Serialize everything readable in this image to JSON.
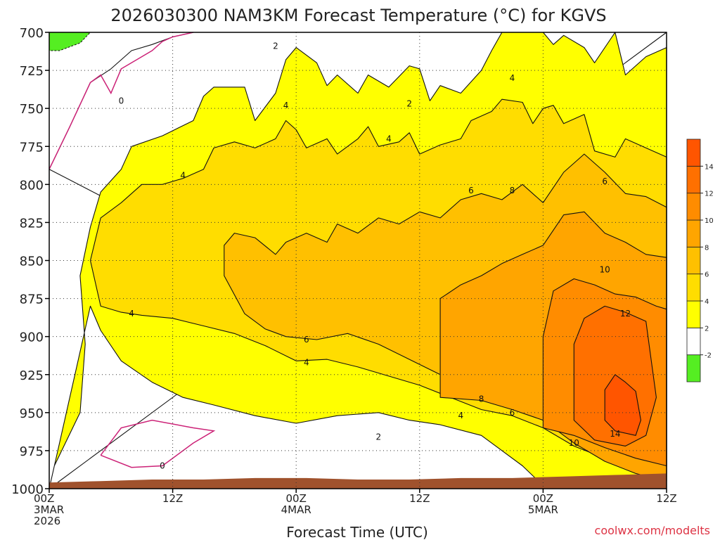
{
  "chart_data": {
    "type": "heatmap",
    "title": "2026030300 NAM3KM Forecast Temperature (°C) for KGVS",
    "xlabel": "Forecast Time (UTC)",
    "ylabel": "",
    "watermark": "coolwx.com/modelts",
    "yticks": [
      700,
      725,
      750,
      775,
      800,
      825,
      850,
      875,
      900,
      925,
      950,
      975,
      1000
    ],
    "ylim": [
      1000,
      700
    ],
    "xticks": [
      {
        "hour": 0,
        "line1": "00Z",
        "line2": "3MAR",
        "line3": "2026"
      },
      {
        "hour": 12,
        "line1": "12Z",
        "line2": "",
        "line3": ""
      },
      {
        "hour": 24,
        "line1": "00Z",
        "line2": "4MAR",
        "line3": ""
      },
      {
        "hour": 36,
        "line1": "12Z",
        "line2": "",
        "line3": ""
      },
      {
        "hour": 48,
        "line1": "00Z",
        "line2": "5MAR",
        "line3": ""
      },
      {
        "hour": 60,
        "line1": "12Z",
        "line2": "",
        "line3": ""
      }
    ],
    "xlim": [
      0,
      60
    ],
    "grid": true,
    "legend": "right",
    "colorbar": {
      "levels": [
        {
          "from": -4,
          "to": -2,
          "color": "#55ee22",
          "label": "-2"
        },
        {
          "from": -2,
          "to": 2,
          "color": "#ffffff",
          "label": "2"
        },
        {
          "from": 2,
          "to": 4,
          "color": "#ffff00",
          "label": "4"
        },
        {
          "from": 4,
          "to": 6,
          "color": "#ffdd00",
          "label": "6"
        },
        {
          "from": 6,
          "to": 8,
          "color": "#ffc000",
          "label": "8"
        },
        {
          "from": 8,
          "to": 10,
          "color": "#ffa500",
          "label": "10"
        },
        {
          "from": 10,
          "to": 12,
          "color": "#ff8c00",
          "label": "12"
        },
        {
          "from": 12,
          "to": 14,
          "color": "#ff7000",
          "label": "14"
        },
        {
          "from": 14,
          "to": 16,
          "color": "#ff5500",
          "label": ""
        }
      ]
    },
    "ground_color": "#a0522d",
    "contour_labels": [
      {
        "text": "0",
        "hour": 7,
        "p": 745
      },
      {
        "text": "2",
        "hour": 22,
        "p": 709
      },
      {
        "text": "4",
        "hour": 23,
        "p": 748
      },
      {
        "text": "2",
        "hour": 35,
        "p": 747
      },
      {
        "text": "4",
        "hour": 33,
        "p": 770
      },
      {
        "text": "4",
        "hour": 45,
        "p": 730
      },
      {
        "text": "4",
        "hour": 13,
        "p": 794
      },
      {
        "text": "6",
        "hour": 41,
        "p": 804
      },
      {
        "text": "8",
        "hour": 45,
        "p": 804
      },
      {
        "text": "6",
        "hour": 54,
        "p": 798
      },
      {
        "text": "10",
        "hour": 54,
        "p": 856
      },
      {
        "text": "12",
        "hour": 56,
        "p": 885
      },
      {
        "text": "4",
        "hour": 8,
        "p": 885
      },
      {
        "text": "6",
        "hour": 25,
        "p": 902
      },
      {
        "text": "4",
        "hour": 25,
        "p": 917
      },
      {
        "text": "8",
        "hour": 42,
        "p": 941
      },
      {
        "text": "6",
        "hour": 45,
        "p": 950
      },
      {
        "text": "4",
        "hour": 40,
        "p": 952
      },
      {
        "text": "2",
        "hour": 32,
        "p": 966
      },
      {
        "text": "0",
        "hour": 11,
        "p": 985
      },
      {
        "text": "10",
        "hour": 51,
        "p": 970
      },
      {
        "text": "14",
        "hour": 55,
        "p": 964
      }
    ],
    "bands": [
      {
        "level": "white",
        "upper": [
          [
            0,
            790
          ],
          [
            2,
            762
          ],
          [
            4,
            733
          ],
          [
            6,
            724
          ],
          [
            8,
            712
          ],
          [
            10,
            708
          ],
          [
            12,
            703
          ],
          [
            14,
            700
          ],
          [
            60,
            700
          ]
        ],
        "lower": [
          [
            0,
            1000
          ],
          [
            60,
            1000
          ]
        ]
      },
      {
        "level": "yellow",
        "upper": [
          [
            0,
            1000
          ],
          [
            0.5,
            985
          ],
          [
            3,
            950
          ],
          [
            3.5,
            905
          ],
          [
            3,
            860
          ],
          [
            4,
            828
          ],
          [
            5,
            805
          ],
          [
            7,
            790
          ],
          [
            8,
            775
          ],
          [
            11,
            768
          ],
          [
            14,
            758
          ],
          [
            15,
            742
          ],
          [
            16,
            736
          ],
          [
            19,
            736
          ],
          [
            20,
            758
          ],
          [
            22,
            740
          ],
          [
            23,
            718
          ],
          [
            24,
            710
          ],
          [
            26,
            720
          ],
          [
            27,
            735
          ],
          [
            28,
            728
          ],
          [
            30,
            740
          ],
          [
            31,
            728
          ],
          [
            33,
            736
          ],
          [
            35,
            722
          ],
          [
            36,
            724
          ],
          [
            37,
            745
          ],
          [
            38,
            735
          ],
          [
            40,
            740
          ],
          [
            42,
            725
          ],
          [
            43,
            712
          ],
          [
            44,
            700
          ],
          [
            48,
            700
          ],
          [
            49,
            708
          ],
          [
            50,
            702
          ],
          [
            52,
            710
          ],
          [
            53,
            720
          ],
          [
            55,
            700
          ],
          [
            56,
            728
          ],
          [
            58,
            716
          ],
          [
            60,
            710
          ]
        ],
        "lower": [
          [
            60,
            1000
          ],
          [
            48,
            998
          ],
          [
            46,
            985
          ],
          [
            44,
            975
          ],
          [
            42,
            965
          ],
          [
            38,
            958
          ],
          [
            35,
            955
          ],
          [
            32,
            950
          ],
          [
            28,
            952
          ],
          [
            24,
            957
          ],
          [
            20,
            952
          ],
          [
            16,
            945
          ],
          [
            13,
            940
          ],
          [
            10,
            930
          ],
          [
            7,
            916
          ],
          [
            5,
            896
          ],
          [
            4,
            880
          ],
          [
            0,
            1000
          ]
        ]
      },
      {
        "level": "gold",
        "upper": [
          [
            5,
            880
          ],
          [
            4,
            850
          ],
          [
            5,
            822
          ],
          [
            7,
            812
          ],
          [
            9,
            800
          ],
          [
            11,
            800
          ],
          [
            13,
            796
          ],
          [
            15,
            790
          ],
          [
            16,
            776
          ],
          [
            18,
            772
          ],
          [
            20,
            776
          ],
          [
            22,
            770
          ],
          [
            23,
            758
          ],
          [
            24,
            764
          ],
          [
            25,
            776
          ],
          [
            27,
            770
          ],
          [
            28,
            780
          ],
          [
            30,
            770
          ],
          [
            31,
            762
          ],
          [
            32,
            775
          ],
          [
            34,
            772
          ],
          [
            35,
            766
          ],
          [
            36,
            780
          ],
          [
            38,
            774
          ],
          [
            40,
            770
          ],
          [
            41,
            758
          ],
          [
            43,
            752
          ],
          [
            44,
            744
          ],
          [
            46,
            746
          ],
          [
            47,
            760
          ],
          [
            48,
            750
          ],
          [
            49,
            748
          ],
          [
            50,
            760
          ],
          [
            52,
            754
          ],
          [
            53,
            778
          ],
          [
            55,
            782
          ],
          [
            56,
            770
          ],
          [
            58,
            776
          ],
          [
            60,
            782
          ]
        ],
        "lower": [
          [
            60,
            990
          ],
          [
            57,
            985
          ],
          [
            54,
            980
          ],
          [
            51,
            972
          ],
          [
            48,
            960
          ],
          [
            45,
            952
          ],
          [
            42,
            948
          ],
          [
            39,
            940
          ],
          [
            36,
            932
          ],
          [
            33,
            926
          ],
          [
            30,
            920
          ],
          [
            27,
            915
          ],
          [
            24,
            916
          ],
          [
            21,
            906
          ],
          [
            18,
            898
          ],
          [
            15,
            893
          ],
          [
            12,
            888
          ],
          [
            9,
            886
          ],
          [
            7,
            884
          ],
          [
            5,
            880
          ]
        ]
      },
      {
        "level": "orange",
        "upper": [
          [
            17,
            860
          ],
          [
            17,
            840
          ],
          [
            18,
            832
          ],
          [
            20,
            835
          ],
          [
            22,
            846
          ],
          [
            23,
            838
          ],
          [
            25,
            832
          ],
          [
            27,
            838
          ],
          [
            28,
            826
          ],
          [
            30,
            832
          ],
          [
            32,
            822
          ],
          [
            34,
            826
          ],
          [
            36,
            818
          ],
          [
            38,
            822
          ],
          [
            40,
            810
          ],
          [
            42,
            806
          ],
          [
            44,
            810
          ],
          [
            46,
            800
          ],
          [
            48,
            812
          ],
          [
            50,
            792
          ],
          [
            52,
            780
          ],
          [
            54,
            792
          ],
          [
            56,
            806
          ],
          [
            58,
            808
          ],
          [
            60,
            815
          ]
        ],
        "lower": [
          [
            60,
            985
          ],
          [
            56,
            978
          ],
          [
            52,
            965
          ],
          [
            48,
            950
          ],
          [
            45,
            940
          ],
          [
            42,
            935
          ],
          [
            38,
            925
          ],
          [
            35,
            915
          ],
          [
            32,
            905
          ],
          [
            29,
            898
          ],
          [
            26,
            902
          ],
          [
            23,
            900
          ],
          [
            21,
            895
          ],
          [
            19,
            885
          ],
          [
            17,
            860
          ]
        ]
      },
      {
        "level": "darkorange",
        "upper": [
          [
            38,
            940
          ],
          [
            38,
            915
          ],
          [
            38,
            875
          ],
          [
            40,
            866
          ],
          [
            42,
            860
          ],
          [
            44,
            852
          ],
          [
            46,
            846
          ],
          [
            48,
            840
          ],
          [
            50,
            820
          ],
          [
            52,
            818
          ],
          [
            54,
            832
          ],
          [
            56,
            838
          ],
          [
            58,
            846
          ],
          [
            60,
            848
          ]
        ],
        "lower": [
          [
            60,
            995
          ],
          [
            57,
            990
          ],
          [
            54,
            982
          ],
          [
            51,
            970
          ],
          [
            48,
            955
          ],
          [
            45,
            948
          ],
          [
            42,
            942
          ],
          [
            38,
            940
          ]
        ]
      },
      {
        "level": "orange2",
        "upper": [
          [
            48,
            960
          ],
          [
            48,
            900
          ],
          [
            49,
            870
          ],
          [
            51,
            862
          ],
          [
            53,
            866
          ],
          [
            55,
            872
          ],
          [
            57,
            874
          ],
          [
            59,
            880
          ],
          [
            60,
            882
          ]
        ],
        "lower": [
          [
            60,
            985
          ],
          [
            57,
            980
          ],
          [
            54,
            973
          ],
          [
            51,
            965
          ],
          [
            48,
            960
          ]
        ]
      },
      {
        "level": "red1",
        "upper": [
          [
            51,
            955
          ],
          [
            51,
            905
          ],
          [
            52,
            888
          ],
          [
            54,
            880
          ],
          [
            56,
            884
          ],
          [
            58,
            890
          ],
          [
            58.5,
            915
          ],
          [
            59,
            940
          ],
          [
            58,
            965
          ],
          [
            56,
            972
          ],
          [
            53,
            968
          ],
          [
            51,
            955
          ]
        ],
        "lower": []
      },
      {
        "level": "red2",
        "upper": [
          [
            54,
            955
          ],
          [
            54,
            935
          ],
          [
            55,
            925
          ],
          [
            56,
            930
          ],
          [
            57,
            936
          ],
          [
            57.5,
            955
          ],
          [
            57,
            965
          ],
          [
            55,
            962
          ],
          [
            54,
            955
          ]
        ],
        "lower": []
      }
    ],
    "green_patch": [
      [
        0,
        700
      ],
      [
        4,
        700
      ],
      [
        3,
        707
      ],
      [
        1,
        712
      ],
      [
        0,
        712
      ]
    ]
  }
}
